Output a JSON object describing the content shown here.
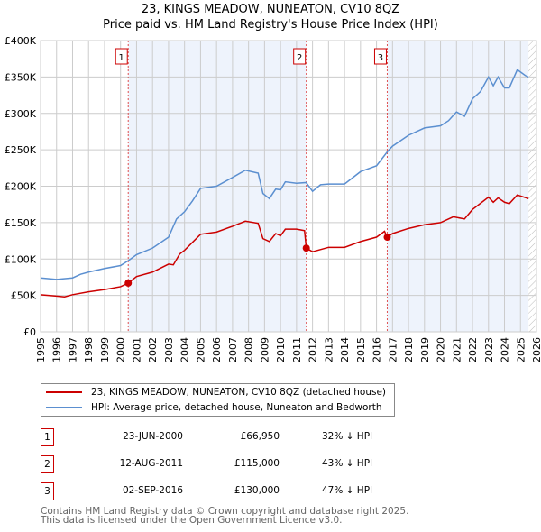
{
  "header": {
    "title": "23, KINGS MEADOW, NUNEATON, CV10 8QZ",
    "subtitle": "Price paid vs. HM Land Registry's House Price Index (HPI)"
  },
  "chart_data": {
    "type": "line",
    "title": "23, KINGS MEADOW, NUNEATON, CV10 8QZ",
    "subtitle": "Price paid vs. HM Land Registry's House Price Index (HPI)",
    "xlim": [
      1995,
      2026
    ],
    "ylim": [
      0,
      400000
    ],
    "grid": true,
    "x_ticks": [
      "1995",
      "1996",
      "1997",
      "1998",
      "1999",
      "2000",
      "2001",
      "2002",
      "2003",
      "2004",
      "2005",
      "2006",
      "2007",
      "2008",
      "2009",
      "2010",
      "2011",
      "2012",
      "2013",
      "2014",
      "2015",
      "2016",
      "2017",
      "2018",
      "2019",
      "2020",
      "2021",
      "2022",
      "2023",
      "2024",
      "2025",
      "2026"
    ],
    "y_ticks": [
      {
        "v": 0,
        "label": "£0"
      },
      {
        "v": 50000,
        "label": "£50K"
      },
      {
        "v": 100000,
        "label": "£100K"
      },
      {
        "v": 150000,
        "label": "£150K"
      },
      {
        "v": 200000,
        "label": "£200K"
      },
      {
        "v": 250000,
        "label": "£250K"
      },
      {
        "v": 300000,
        "label": "£300K"
      },
      {
        "v": 350000,
        "label": "£350K"
      },
      {
        "v": 400000,
        "label": "£400K"
      }
    ],
    "series": [
      {
        "name": "23, KINGS MEADOW, NUNEATON, CV10 8QZ (detached house)",
        "color": "#cc0000",
        "x": [
          1995,
          1996,
          1996.5,
          1997,
          1998,
          1999,
          2000,
          2000.48,
          2001,
          2002,
          2003,
          2003.3,
          2003.7,
          2004,
          2005,
          2006,
          2007,
          2007.8,
          2008.6,
          2008.9,
          2009.3,
          2009.7,
          2010,
          2010.3,
          2011,
          2011.5,
          2011.61,
          2012,
          2013,
          2014,
          2015,
          2016,
          2016.5,
          2016.67,
          2017,
          2018,
          2019,
          2020,
          2020.8,
          2021.5,
          2022,
          2023,
          2023.3,
          2023.6,
          2024,
          2024.3,
          2024.8,
          2025.5
        ],
        "y": [
          51000,
          49000,
          48000,
          51000,
          55000,
          58000,
          62000,
          66950,
          76000,
          82000,
          93000,
          92000,
          107000,
          112000,
          134000,
          137000,
          145000,
          152000,
          149000,
          128000,
          124000,
          135000,
          132000,
          141000,
          141000,
          139000,
          115000,
          110000,
          116000,
          116000,
          124000,
          130000,
          138000,
          130000,
          135000,
          142000,
          147000,
          150000,
          158000,
          155000,
          168000,
          185000,
          178000,
          184000,
          178000,
          176000,
          188000,
          183000
        ]
      },
      {
        "name": "HPI: Average price, detached house, Nuneaton and Bedworth",
        "color": "#5b8fd0",
        "x": [
          1995,
          1996,
          1997,
          1997.5,
          1998,
          1999,
          2000,
          2000.5,
          2001,
          2002,
          2003,
          2003.5,
          2004,
          2004.5,
          2005,
          2006,
          2007,
          2007.8,
          2008.6,
          2008.9,
          2009.3,
          2009.7,
          2010,
          2010.3,
          2011,
          2011.6,
          2012,
          2012.5,
          2013,
          2014,
          2015,
          2016,
          2016.7,
          2017,
          2018,
          2019,
          2020,
          2020.5,
          2021,
          2021.5,
          2022,
          2022.5,
          2023,
          2023.3,
          2023.6,
          2024,
          2024.3,
          2024.8,
          2025.3,
          2025.5
        ],
        "y": [
          74000,
          72000,
          74000,
          79000,
          82000,
          87000,
          91000,
          98000,
          106000,
          115000,
          130000,
          155000,
          165000,
          180000,
          197000,
          200000,
          212000,
          222000,
          218000,
          190000,
          183000,
          196000,
          195000,
          206000,
          204000,
          205000,
          193000,
          202000,
          203000,
          203000,
          220000,
          228000,
          248000,
          255000,
          270000,
          280000,
          283000,
          290000,
          302000,
          296000,
          320000,
          330000,
          350000,
          338000,
          350000,
          335000,
          335000,
          360000,
          352000,
          350000
        ]
      }
    ],
    "sales": [
      {
        "n": "1",
        "x": 2000.48,
        "y": 66950
      },
      {
        "n": "2",
        "x": 2011.61,
        "y": 115000
      },
      {
        "n": "3",
        "x": 2016.67,
        "y": 130000
      }
    ],
    "projection_start": 2025.5
  },
  "legend": {
    "property": "23, KINGS MEADOW, NUNEATON, CV10 8QZ (detached house)",
    "hpi": "HPI: Average price, detached house, Nuneaton and Bedworth"
  },
  "transactions": [
    {
      "n": "1",
      "date": "23-JUN-2000",
      "price": "£66,950",
      "hpi": "32% ↓ HPI"
    },
    {
      "n": "2",
      "date": "12-AUG-2011",
      "price": "£115,000",
      "hpi": "43% ↓ HPI"
    },
    {
      "n": "3",
      "date": "02-SEP-2016",
      "price": "£130,000",
      "hpi": "47% ↓ HPI"
    }
  ],
  "footer": {
    "line1": "Contains HM Land Registry data © Crown copyright and database right 2025.",
    "line2": "This data is licensed under the Open Government Licence v3.0."
  }
}
